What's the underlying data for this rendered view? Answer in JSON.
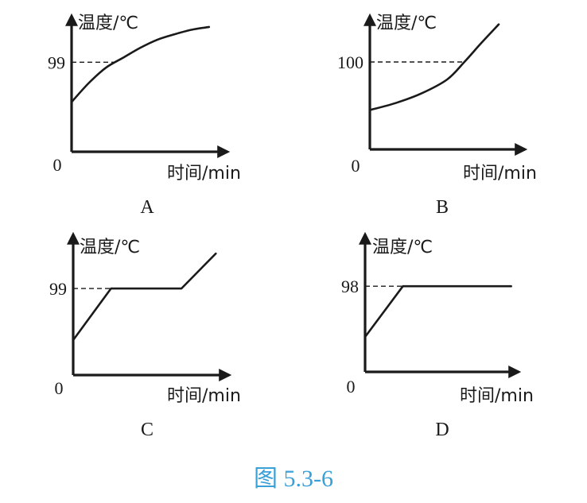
{
  "caption": "图 5.3-6",
  "colors": {
    "ink": "#1a1a1a",
    "caption": "#3aa0d8"
  },
  "chart_data": [
    {
      "type": "line",
      "panel": "A",
      "ylabel": "温度/℃",
      "xlabel": "时间/min",
      "origin_label": "0",
      "ref_value": 99,
      "ref_label": "99",
      "ylim": [
        0,
        145
      ],
      "xlim": [
        0,
        10
      ],
      "series": [
        {
          "x": [
            0,
            1,
            2,
            3,
            4,
            5,
            6,
            7,
            8
          ],
          "y": [
            55,
            76,
            93,
            104,
            115,
            124,
            130,
            135,
            138
          ]
        }
      ]
    },
    {
      "type": "line",
      "panel": "B",
      "ylabel": "温度/℃",
      "xlabel": "时间/min",
      "origin_label": "0",
      "ref_value": 100,
      "ref_label": "100",
      "ylim": [
        0,
        150
      ],
      "xlim": [
        0,
        10
      ],
      "series": [
        {
          "x": [
            0,
            1.5,
            3,
            4.5,
            5.5,
            6.5,
            7.5
          ],
          "y": [
            45,
            53,
            64,
            80,
            100,
            122,
            143
          ]
        }
      ]
    },
    {
      "type": "line",
      "panel": "C",
      "ylabel": "温度/℃",
      "xlabel": "时间/min",
      "origin_label": "0",
      "ref_value": 99,
      "ref_label": "99",
      "ylim": [
        0,
        150
      ],
      "xlim": [
        0,
        10
      ],
      "series": [
        {
          "x": [
            0,
            2.2,
            6.3,
            8.3
          ],
          "y": [
            40,
            99,
            99,
            139
          ]
        }
      ]
    },
    {
      "type": "line",
      "panel": "D",
      "ylabel": "温度/℃",
      "xlabel": "时间/min",
      "origin_label": "0",
      "ref_value": 98,
      "ref_label": "98",
      "ylim": [
        0,
        150
      ],
      "xlim": [
        0,
        10
      ],
      "series": [
        {
          "x": [
            0,
            2.2,
            8.5
          ],
          "y": [
            40,
            98,
            98
          ]
        }
      ]
    }
  ]
}
